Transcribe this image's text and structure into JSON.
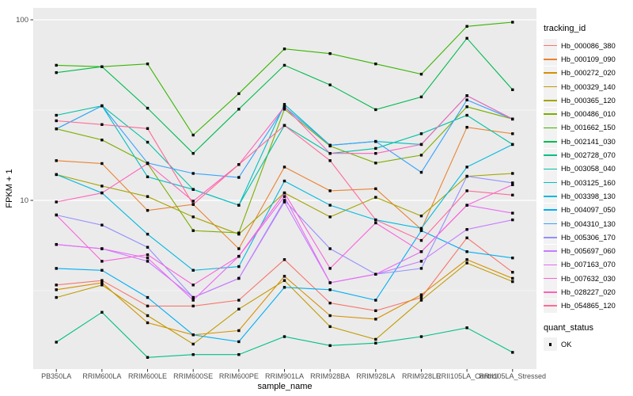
{
  "chart_data": {
    "type": "line",
    "title": "",
    "xlabel": "sample_name",
    "ylabel": "FPKM + 1",
    "yscale": "log10",
    "ylim": [
      1.15,
      115
    ],
    "yticks": [
      10,
      100
    ],
    "ytick_labels": [
      "10",
      "100"
    ],
    "minor_gridlines": [
      3.1623,
      31.623
    ],
    "grid": true,
    "legend_position": "right",
    "panel_bg": "#EBEBEB",
    "grid_color": "#FFFFFF",
    "tick_label_color": "#4D4D4D",
    "marker": "black-square",
    "categories": [
      "PB350LA",
      "RRIM600LA",
      "RRIM600LE",
      "RRIM600SE",
      "RRIM600PE",
      "RRIM901LA",
      "RRIM928BA",
      "RRIM928LA",
      "RRIM928LE",
      "RRII105LA_Control",
      "RRII105LA_Stressed"
    ],
    "series": [
      {
        "name": "Hb_000086_380",
        "color": "#F8766D",
        "values": [
          3.4,
          3.6,
          2.6,
          2.6,
          2.8,
          4.7,
          2.7,
          2.45,
          2.9,
          6.2,
          4.0
        ]
      },
      {
        "name": "Hb_000109_090",
        "color": "#EA8331",
        "values": [
          16.6,
          16.0,
          8.8,
          9.5,
          5.4,
          15.3,
          11.3,
          11.6,
          6.9,
          25.4,
          23.4
        ]
      },
      {
        "name": "Hb_000272_020",
        "color": "#D89000",
        "values": [
          3.2,
          3.5,
          2.1,
          1.8,
          1.9,
          3.8,
          2.3,
          2.2,
          3.0,
          4.7,
          3.7
        ]
      },
      {
        "name": "Hb_000329_140",
        "color": "#C09B00",
        "values": [
          2.9,
          3.4,
          2.3,
          1.6,
          2.5,
          3.6,
          2.0,
          1.7,
          2.8,
          4.5,
          3.55
        ]
      },
      {
        "name": "Hb_000365_120",
        "color": "#A3A500",
        "values": [
          13.9,
          12.0,
          10.5,
          8.1,
          6.5,
          11.0,
          8.1,
          10.4,
          8.2,
          13.6,
          14.1
        ]
      },
      {
        "name": "Hb_000486_010",
        "color": "#7CAE00",
        "values": [
          24.9,
          21.6,
          16.0,
          6.8,
          6.6,
          32.0,
          20.0,
          16.1,
          17.8,
          33.0,
          28.2
        ]
      },
      {
        "name": "Hb_001662_150",
        "color": "#39B600",
        "values": [
          56,
          55,
          57,
          23,
          39,
          69,
          65,
          57,
          50,
          92,
          97
        ]
      },
      {
        "name": "Hb_002141_030",
        "color": "#00BB4E",
        "values": [
          51,
          55,
          32.4,
          18.2,
          32,
          56,
          43.6,
          31.8,
          37.4,
          79,
          41
        ]
      },
      {
        "name": "Hb_002728_070",
        "color": "#00C087",
        "values": [
          1.64,
          2.4,
          1.35,
          1.4,
          1.4,
          1.76,
          1.57,
          1.62,
          1.76,
          1.97,
          1.44
        ]
      },
      {
        "name": "Hb_003058_040",
        "color": "#00C1A3",
        "values": [
          29.6,
          33.4,
          21,
          11.5,
          9.4,
          26,
          18.2,
          19.4,
          23.4,
          29.6,
          20.4
        ]
      },
      {
        "name": "Hb_003125_160",
        "color": "#00BFC4",
        "values": [
          24.9,
          33.4,
          13.5,
          11.5,
          9.4,
          34,
          20.2,
          21.2,
          20.4,
          38,
          28.2
        ]
      },
      {
        "name": "Hb_003398_130",
        "color": "#00BAE0",
        "values": [
          13.9,
          11.0,
          6.5,
          4.1,
          4.3,
          12.8,
          9.4,
          7.8,
          7.0,
          15.3,
          20.4
        ]
      },
      {
        "name": "Hb_004097_050",
        "color": "#00B0F6",
        "values": [
          4.2,
          4.1,
          2.9,
          1.8,
          1.65,
          3.3,
          3.2,
          2.8,
          6.8,
          5.2,
          4.8
        ]
      },
      {
        "name": "Hb_004310_130",
        "color": "#35A2FF",
        "values": [
          24.9,
          33.4,
          16.1,
          14.1,
          13.4,
          33,
          20.2,
          21.2,
          14.3,
          36,
          28.2
        ]
      },
      {
        "name": "Hb_005306_170",
        "color": "#9590FF",
        "values": [
          8.3,
          7.3,
          5.5,
          2.9,
          3.7,
          10.0,
          5.4,
          3.9,
          4.2,
          13.6,
          12.5
        ]
      },
      {
        "name": "Hb_005697_060",
        "color": "#C77CFF",
        "values": [
          5.7,
          5.4,
          4.6,
          2.9,
          3.7,
          9.8,
          3.5,
          3.9,
          4.6,
          6.9,
          7.8
        ]
      },
      {
        "name": "Hb_007163_070",
        "color": "#E76BF3",
        "values": [
          5.7,
          5.4,
          4.8,
          2.8,
          4.9,
          10.5,
          3.5,
          3.9,
          5.2,
          9.4,
          8.5
        ]
      },
      {
        "name": "Hb_007632_030",
        "color": "#FA62DB",
        "values": [
          8.3,
          4.6,
          5.0,
          3.4,
          4.9,
          11.0,
          4.2,
          7.5,
          5.2,
          9.4,
          12.2
        ]
      },
      {
        "name": "Hb_028227_020",
        "color": "#FF62BC",
        "values": [
          9.8,
          11.0,
          16.0,
          9.9,
          15.8,
          33.0,
          18.2,
          18.2,
          20.4,
          38,
          28.2
        ]
      },
      {
        "name": "Hb_054865_120",
        "color": "#FF6A98",
        "values": [
          27.6,
          26.3,
          25.0,
          9.5,
          15.8,
          26.0,
          16.6,
          7.8,
          6.0,
          11.3,
          10.7
        ]
      }
    ]
  },
  "legend": {
    "tracking_title": "tracking_id",
    "quant_title": "quant_status",
    "quant_items": [
      {
        "label": "OK",
        "symbol": "black-square"
      }
    ]
  }
}
